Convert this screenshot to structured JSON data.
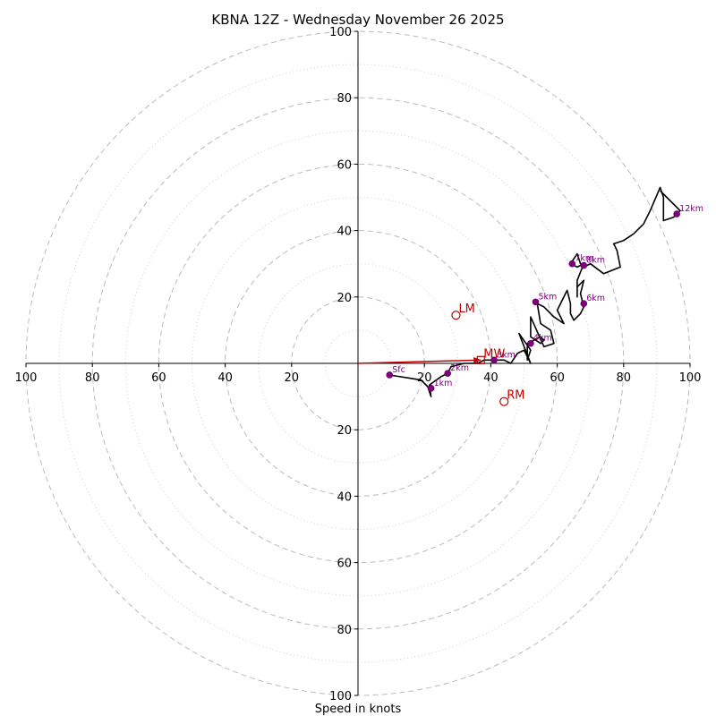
{
  "chart_data": {
    "type": "hodograph",
    "title": "KBNA 12Z - Wednesday November 26 2025",
    "xlabel": "Speed in knots",
    "range": 100,
    "major_rings": [
      20,
      40,
      60,
      80,
      100
    ],
    "minor_rings": [
      10,
      30,
      50,
      70,
      90
    ],
    "tick_values": [
      20,
      40,
      60,
      80,
      100
    ],
    "tick_labels": [
      "20",
      "40",
      "60",
      "80",
      "100"
    ],
    "trace": [
      [
        9.5,
        -3.5
      ],
      [
        19,
        -5
      ],
      [
        21,
        -7
      ],
      [
        22,
        -10
      ],
      [
        21.5,
        -6.5
      ],
      [
        25,
        -4
      ],
      [
        27,
        -3
      ],
      [
        28,
        -1
      ],
      [
        32,
        0
      ],
      [
        36,
        0
      ],
      [
        38,
        1
      ],
      [
        41,
        1
      ],
      [
        44,
        1
      ],
      [
        46,
        0
      ],
      [
        48,
        3
      ],
      [
        50,
        4
      ],
      [
        52,
        0
      ],
      [
        48.5,
        9
      ],
      [
        52,
        4
      ],
      [
        51,
        1
      ],
      [
        51,
        6
      ],
      [
        55,
        8
      ],
      [
        56,
        7
      ],
      [
        55,
        6
      ],
      [
        52,
        8
      ],
      [
        52,
        10
      ],
      [
        52,
        14
      ],
      [
        56,
        5
      ],
      [
        59,
        6
      ],
      [
        58,
        10
      ],
      [
        55,
        12
      ],
      [
        54,
        18
      ],
      [
        56,
        17
      ],
      [
        59,
        14
      ],
      [
        62,
        12
      ],
      [
        60,
        16
      ],
      [
        63,
        22
      ],
      [
        64,
        18
      ],
      [
        64,
        15
      ],
      [
        65,
        13
      ],
      [
        67,
        15
      ],
      [
        68,
        17
      ],
      [
        67,
        21
      ],
      [
        68,
        25
      ],
      [
        66,
        23
      ],
      [
        66,
        20
      ],
      [
        66,
        25
      ],
      [
        68,
        30
      ],
      [
        66,
        29
      ],
      [
        64,
        30
      ],
      [
        66,
        33
      ],
      [
        67,
        30
      ],
      [
        68,
        29
      ],
      [
        70,
        30
      ],
      [
        74,
        27
      ],
      [
        79,
        29
      ],
      [
        78,
        34
      ],
      [
        77,
        36
      ],
      [
        80,
        37
      ],
      [
        83,
        39
      ],
      [
        86,
        42
      ],
      [
        88,
        46
      ],
      [
        91,
        53
      ],
      [
        92,
        50
      ],
      [
        92,
        46
      ],
      [
        92,
        43
      ],
      [
        95,
        44
      ],
      [
        97,
        46
      ],
      [
        93,
        50
      ],
      [
        91,
        52
      ]
    ],
    "height_markers": [
      {
        "label": "Sfc",
        "u": 9.5,
        "v": -3.5
      },
      {
        "label": "1km",
        "u": 22,
        "v": -7.5
      },
      {
        "label": "2km",
        "u": 27,
        "v": -3
      },
      {
        "label": "3km",
        "u": 41,
        "v": 1
      },
      {
        "label": "4km",
        "u": 52,
        "v": 6
      },
      {
        "label": "5km",
        "u": 53.5,
        "v": 18.5
      },
      {
        "label": "6km",
        "u": 68,
        "v": 18
      },
      {
        "label": "7km",
        "u": 64.5,
        "v": 30
      },
      {
        "label": "8km",
        "u": 68,
        "v": 29.5
      },
      {
        "label": "12km",
        "u": 96,
        "v": 45
      }
    ],
    "motions": [
      {
        "label": "LM",
        "u": 29.5,
        "v": 14.5,
        "shape": "circle"
      },
      {
        "label": "MW",
        "u": 37,
        "v": 1,
        "shape": "square"
      },
      {
        "label": "RM",
        "u": 44,
        "v": -11.5,
        "shape": "circle"
      }
    ],
    "vector": {
      "from": [
        0,
        0
      ],
      "to": [
        37,
        1
      ]
    },
    "colors": {
      "trace": "#000000",
      "marker": "#800080",
      "motion": "#c00000",
      "grid": "#bbbbbb",
      "minor_grid": "#d0d0d0"
    }
  }
}
